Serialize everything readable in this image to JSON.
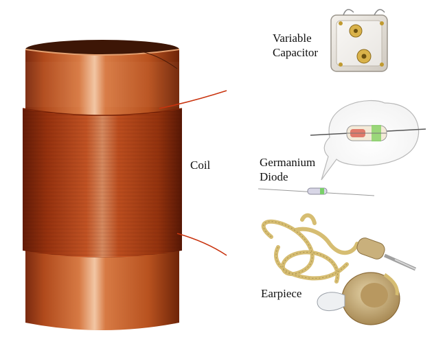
{
  "labels": {
    "variable_capacitor_line1": "Variable",
    "variable_capacitor_line2": "Capacitor",
    "coil": "Coil",
    "germanium_diode_line1": "Germanium",
    "germanium_diode_line2": "Diode",
    "earpiece": "Earpiece"
  },
  "colors": {
    "copper_dark": "#8a2f10",
    "copper_mid": "#c65a24",
    "copper_light": "#e88a50",
    "wire_red": "#c9330e",
    "earpiece_beige": "#c8ae7a",
    "cord_yellow": "#d8c27a"
  }
}
